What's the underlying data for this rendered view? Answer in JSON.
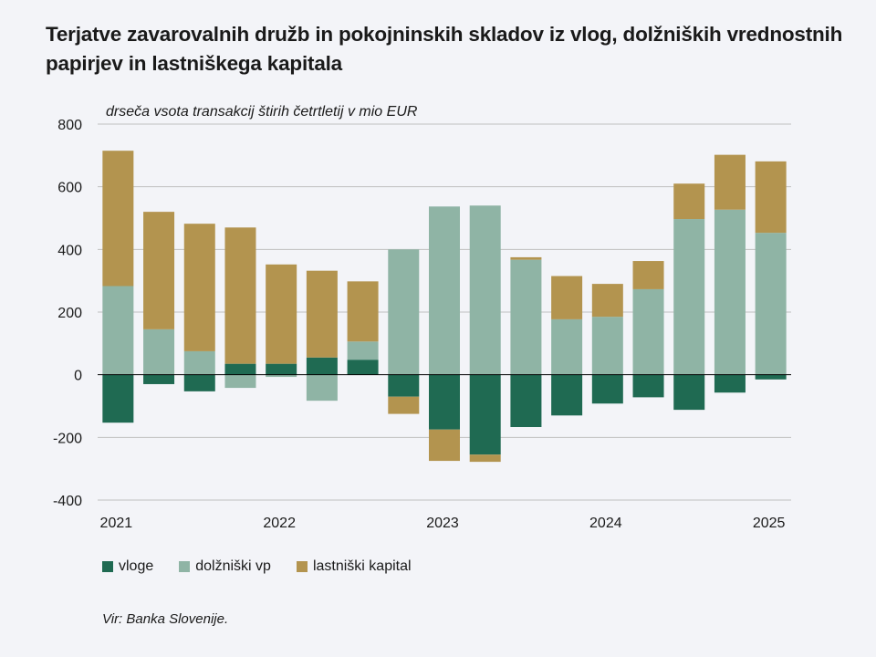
{
  "title": "Terjatve zavarovalnih družb in pokojninskih skladov iz vlog, dolžniških vrednostnih papirjev in lastniškega kapitala",
  "source": "Vir: Banka Slovenije.",
  "colors": {
    "vloge": "#1f6a52",
    "dolzniski_vp": "#8fb4a5",
    "lastniski_kapital": "#b3944f",
    "grid": "#bfbfbf",
    "zero": "#000000"
  },
  "chart_data": {
    "type": "bar",
    "stacked": true,
    "subtitle": "drseča vsota transakcij štirih četrtletij v mio EUR",
    "ylim": [
      -400,
      800
    ],
    "yticks": [
      800,
      600,
      400,
      200,
      0,
      -200,
      -400
    ],
    "ytick_labels": [
      "800",
      "600",
      "400",
      "200",
      "0",
      "-200",
      "-400"
    ],
    "xtick_labels": [
      {
        "label": "2021",
        "index": 0
      },
      {
        "label": "2022",
        "index": 4
      },
      {
        "label": "2023",
        "index": 8
      },
      {
        "label": "2024",
        "index": 12
      },
      {
        "label": "2025",
        "index": 16
      }
    ],
    "grid": true,
    "legend_position": "bottom-left",
    "categories": [
      "2021 Q1",
      "2021 Q2",
      "2021 Q3",
      "2021 Q4",
      "2022 Q1",
      "2022 Q2",
      "2022 Q3",
      "2022 Q4",
      "2023 Q1",
      "2023 Q2",
      "2023 Q3",
      "2023 Q4",
      "2024 Q1",
      "2024 Q2",
      "2024 Q3",
      "2024 Q4",
      "2025 Q1"
    ],
    "series": [
      {
        "name": "vloge",
        "color": "#1f6a52",
        "values": [
          -153,
          -30,
          -53,
          35,
          35,
          55,
          48,
          -70,
          -175,
          -255,
          -167,
          -130,
          -92,
          -72,
          -112,
          -57,
          -15
        ]
      },
      {
        "name": "dolžniški vp",
        "color": "#8fb4a5",
        "values": [
          283,
          145,
          75,
          -42,
          -7,
          -83,
          58,
          400,
          537,
          540,
          367,
          177,
          185,
          273,
          497,
          527,
          453
        ]
      },
      {
        "name": "lastniški kapital",
        "color": "#b3944f",
        "values": [
          432,
          375,
          407,
          435,
          317,
          277,
          192,
          -55,
          -100,
          -23,
          8,
          138,
          105,
          90,
          113,
          175,
          228
        ]
      }
    ]
  }
}
